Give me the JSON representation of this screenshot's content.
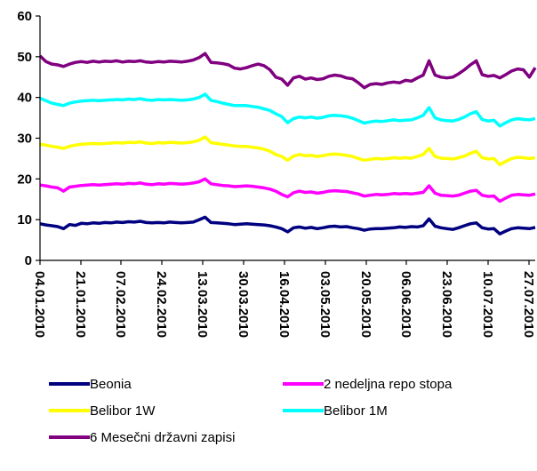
{
  "chart_data": {
    "type": "line",
    "title": "",
    "xlabel": "",
    "ylabel": "",
    "ylim": [
      0,
      60
    ],
    "yticks": [
      0,
      10,
      20,
      30,
      40,
      50,
      60
    ],
    "xticks": [
      "04.01.2010",
      "21.01.2010",
      "07.02.2010",
      "24.02.2010",
      "13.03.2010",
      "30.03.2010",
      "16.04.2010",
      "03.05.2010",
      "20.05.2010",
      "06.06.2010",
      "23.06.2010",
      "10.07.2010",
      "27.07.2010"
    ],
    "grid": false,
    "legend_position": "bottom",
    "series": [
      {
        "name": "Beonia",
        "color": "#000080",
        "values": [
          9.0,
          8.7,
          8.5,
          8.3,
          7.8,
          8.8,
          8.6,
          9.1,
          9.0,
          9.2,
          9.1,
          9.3,
          9.2,
          9.4,
          9.3,
          9.5,
          9.4,
          9.6,
          9.3,
          9.2,
          9.3,
          9.2,
          9.4,
          9.3,
          9.2,
          9.3,
          9.4,
          10.0,
          10.6,
          9.3,
          9.2,
          9.1,
          9.0,
          8.8,
          8.9,
          9.0,
          8.9,
          8.8,
          8.7,
          8.5,
          8.2,
          7.8,
          7.0,
          8.0,
          8.2,
          7.9,
          8.1,
          7.8,
          8.0,
          8.3,
          8.4,
          8.2,
          8.3,
          8.0,
          7.8,
          7.4,
          7.7,
          7.8,
          7.8,
          7.9,
          8.0,
          8.2,
          8.1,
          8.3,
          8.2,
          8.5,
          10.2,
          8.4,
          8.0,
          7.8,
          7.6,
          8.0,
          8.5,
          9.0,
          9.2,
          8.0,
          7.7,
          7.8,
          6.5,
          7.2,
          7.8,
          8.0,
          7.9,
          7.8,
          8.1
        ]
      },
      {
        "name": "2 nedeljna repo stopa",
        "color": "#FF00FF",
        "values": [
          18.5,
          18.3,
          18.0,
          17.8,
          17.0,
          18.0,
          18.2,
          18.4,
          18.5,
          18.6,
          18.5,
          18.6,
          18.7,
          18.8,
          18.7,
          18.9,
          18.8,
          19.0,
          18.7,
          18.6,
          18.8,
          18.7,
          18.9,
          18.8,
          18.7,
          18.8,
          19.0,
          19.3,
          20.0,
          18.8,
          18.6,
          18.4,
          18.3,
          18.1,
          18.2,
          18.3,
          18.2,
          18.0,
          17.8,
          17.5,
          17.0,
          16.2,
          15.6,
          16.6,
          17.0,
          16.7,
          16.8,
          16.5,
          16.7,
          17.0,
          17.1,
          17.0,
          16.9,
          16.6,
          16.3,
          15.8,
          16.0,
          16.2,
          16.1,
          16.2,
          16.4,
          16.3,
          16.4,
          16.3,
          16.5,
          16.7,
          18.3,
          16.5,
          16.0,
          15.9,
          15.8,
          16.0,
          16.5,
          17.0,
          17.2,
          16.0,
          15.7,
          15.8,
          14.5,
          15.3,
          16.0,
          16.2,
          16.1,
          16.0,
          16.3
        ]
      },
      {
        "name": "Belibor 1W",
        "color": "#FFFF00",
        "values": [
          28.5,
          28.3,
          28.0,
          27.8,
          27.5,
          28.0,
          28.3,
          28.5,
          28.6,
          28.7,
          28.6,
          28.7,
          28.8,
          28.9,
          28.8,
          29.0,
          28.9,
          29.1,
          28.8,
          28.7,
          28.9,
          28.8,
          29.0,
          28.9,
          28.8,
          28.9,
          29.1,
          29.5,
          30.3,
          28.9,
          28.7,
          28.5,
          28.3,
          28.1,
          28.0,
          28.0,
          27.8,
          27.6,
          27.3,
          26.8,
          26.0,
          25.5,
          24.6,
          25.6,
          26.0,
          25.7,
          25.8,
          25.5,
          25.7,
          26.0,
          26.1,
          26.0,
          25.8,
          25.5,
          25.0,
          24.6,
          24.8,
          25.0,
          24.9,
          25.0,
          25.2,
          25.1,
          25.2,
          25.1,
          25.5,
          26.0,
          27.5,
          25.5,
          25.1,
          25.0,
          24.9,
          25.2,
          25.6,
          26.3,
          26.8,
          25.2,
          24.9,
          25.0,
          23.5,
          24.3,
          25.0,
          25.3,
          25.2,
          25.0,
          25.2
        ]
      },
      {
        "name": "Belibor 1M",
        "color": "#00FFFF",
        "values": [
          39.8,
          39.2,
          38.6,
          38.3,
          38.0,
          38.6,
          38.9,
          39.1,
          39.2,
          39.3,
          39.2,
          39.3,
          39.4,
          39.5,
          39.4,
          39.6,
          39.5,
          39.7,
          39.4,
          39.3,
          39.5,
          39.4,
          39.5,
          39.4,
          39.3,
          39.4,
          39.6,
          40.0,
          40.8,
          39.3,
          39.0,
          38.6,
          38.3,
          38.0,
          38.0,
          38.0,
          37.8,
          37.6,
          37.2,
          36.8,
          36.0,
          35.3,
          33.8,
          34.8,
          35.2,
          35.0,
          35.2,
          34.9,
          35.1,
          35.5,
          35.6,
          35.5,
          35.3,
          34.9,
          34.3,
          33.7,
          34.0,
          34.2,
          34.1,
          34.3,
          34.5,
          34.3,
          34.4,
          34.5,
          35.0,
          35.6,
          37.5,
          35.0,
          34.5,
          34.3,
          34.2,
          34.6,
          35.2,
          36.0,
          36.5,
          34.6,
          34.2,
          34.4,
          33.0,
          33.8,
          34.5,
          34.8,
          34.6,
          34.5,
          34.8
        ]
      },
      {
        "name": "6 Mesečni državni zapisi",
        "color": "#800080",
        "values": [
          50.2,
          48.8,
          48.2,
          48.0,
          47.6,
          48.2,
          48.6,
          48.8,
          48.6,
          48.9,
          48.7,
          48.9,
          48.8,
          49.0,
          48.7,
          48.9,
          48.8,
          49.0,
          48.7,
          48.6,
          48.8,
          48.7,
          48.9,
          48.8,
          48.7,
          48.9,
          49.2,
          49.8,
          50.8,
          48.6,
          48.5,
          48.3,
          48.0,
          47.2,
          47.0,
          47.3,
          47.8,
          48.2,
          47.8,
          46.8,
          45.0,
          44.5,
          43.0,
          44.8,
          45.2,
          44.5,
          44.8,
          44.4,
          44.6,
          45.2,
          45.5,
          45.3,
          44.8,
          44.6,
          43.6,
          42.4,
          43.2,
          43.4,
          43.2,
          43.6,
          43.8,
          43.6,
          44.2,
          44.0,
          44.8,
          45.5,
          49.0,
          45.5,
          45.0,
          44.8,
          45.0,
          45.8,
          46.8,
          48.0,
          49.0,
          45.6,
          45.2,
          45.4,
          44.8,
          45.6,
          46.5,
          47.0,
          46.8,
          45.0,
          47.3
        ]
      }
    ]
  }
}
